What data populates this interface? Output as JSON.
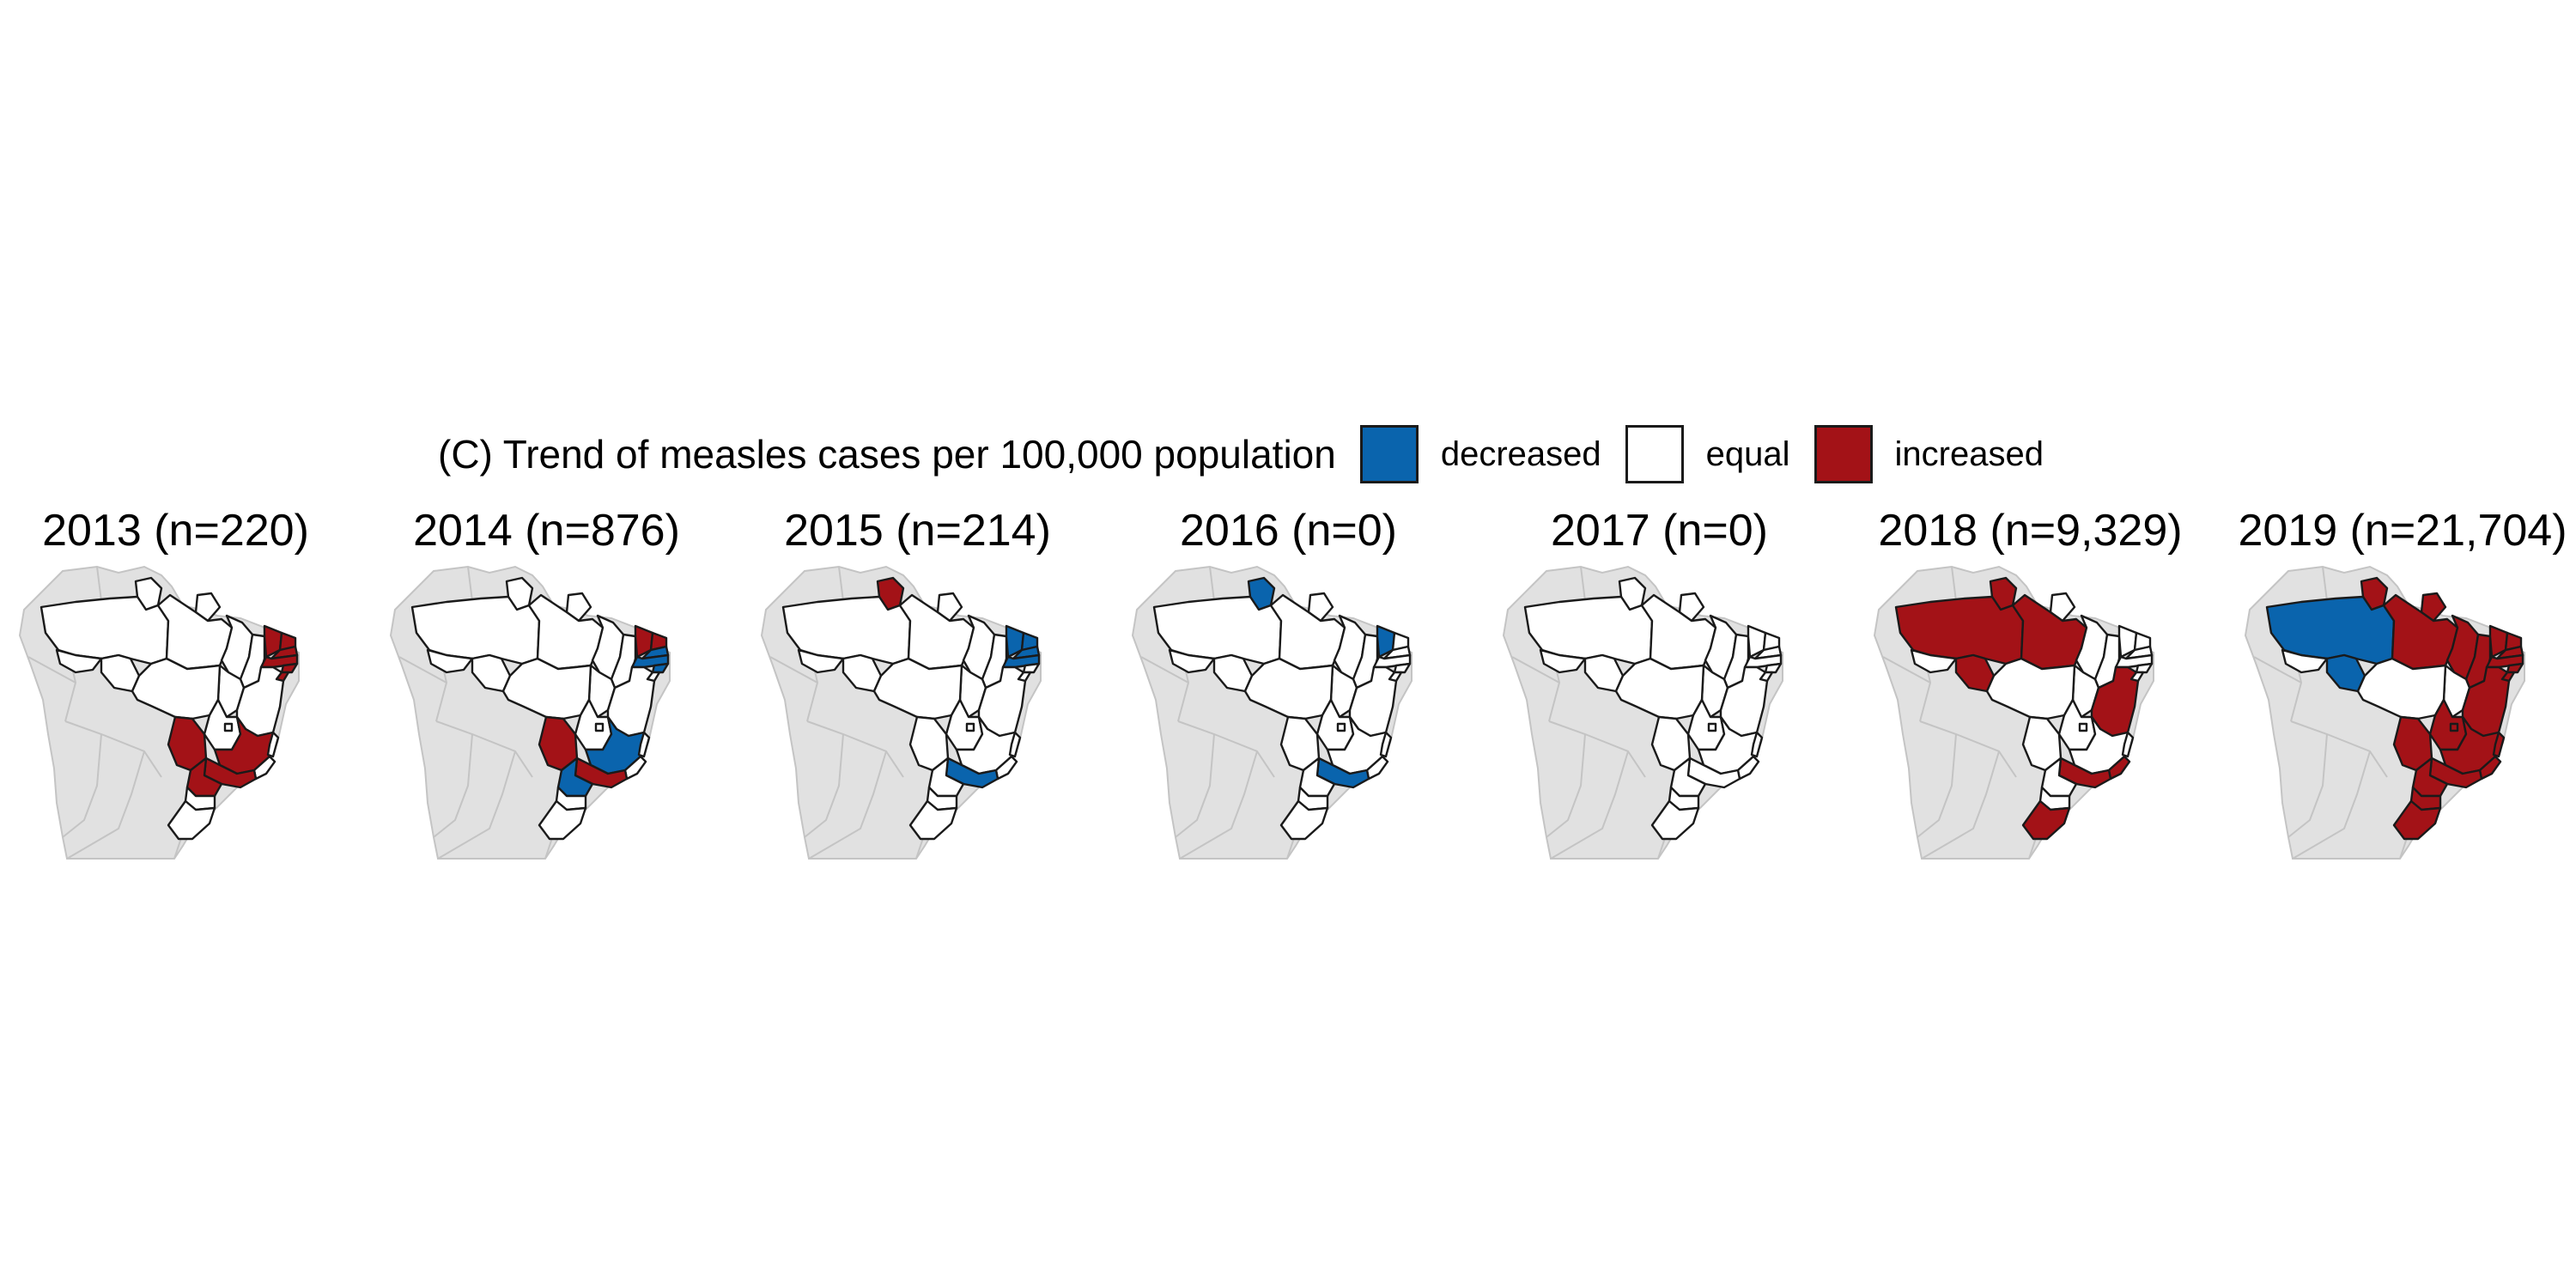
{
  "legend": {
    "title": "(C) Trend of measles cases per 100,000 population",
    "items": [
      {
        "label": "decreased",
        "color": "#0a64ad"
      },
      {
        "label": "equal",
        "color": "#ffffff"
      },
      {
        "label": "increased",
        "color": "#a31217"
      }
    ]
  },
  "colors": {
    "background_countries": "#e1e1e1",
    "background_border": "#c4c4c4",
    "state_border": "#1a1a1a",
    "decreased": "#0a64ad",
    "equal": "#ffffff",
    "increased": "#a31217"
  },
  "panels": [
    {
      "year": "2013",
      "title": "2013 (n=220)",
      "decreased": [],
      "increased": [
        "CE",
        "RN",
        "PB",
        "PE",
        "AL",
        "SE",
        "MG",
        "SP",
        "MS",
        "PR"
      ]
    },
    {
      "year": "2014",
      "title": "2014 (n=876)",
      "decreased": [
        "PB",
        "PE",
        "AL",
        "MG",
        "PR"
      ],
      "increased": [
        "CE",
        "RN",
        "SP",
        "MS"
      ]
    },
    {
      "year": "2015",
      "title": "2015 (n=214)",
      "decreased": [
        "CE",
        "RN",
        "PB",
        "PE",
        "SP"
      ],
      "increased": [
        "RR"
      ]
    },
    {
      "year": "2016",
      "title": "2016 (n=0)",
      "decreased": [
        "RR",
        "CE",
        "SP"
      ],
      "increased": []
    },
    {
      "year": "2017",
      "title": "2017 (n=0)",
      "decreased": [],
      "increased": []
    },
    {
      "year": "2018",
      "title": "2018 (n=9,329)",
      "decreased": [],
      "increased": [
        "AM",
        "RR",
        "PA",
        "RO",
        "BA",
        "RJ",
        "SP",
        "RS"
      ]
    },
    {
      "year": "2019",
      "title": "2019 (n=21,704)",
      "decreased": [
        "AM",
        "RO"
      ],
      "increased": [
        "RR",
        "PA",
        "AP",
        "MA",
        "PI",
        "CE",
        "RN",
        "PB",
        "PE",
        "AL",
        "SE",
        "BA",
        "MG",
        "ES",
        "RJ",
        "SP",
        "MS",
        "GO",
        "DF",
        "PR",
        "SC",
        "RS"
      ]
    }
  ]
}
